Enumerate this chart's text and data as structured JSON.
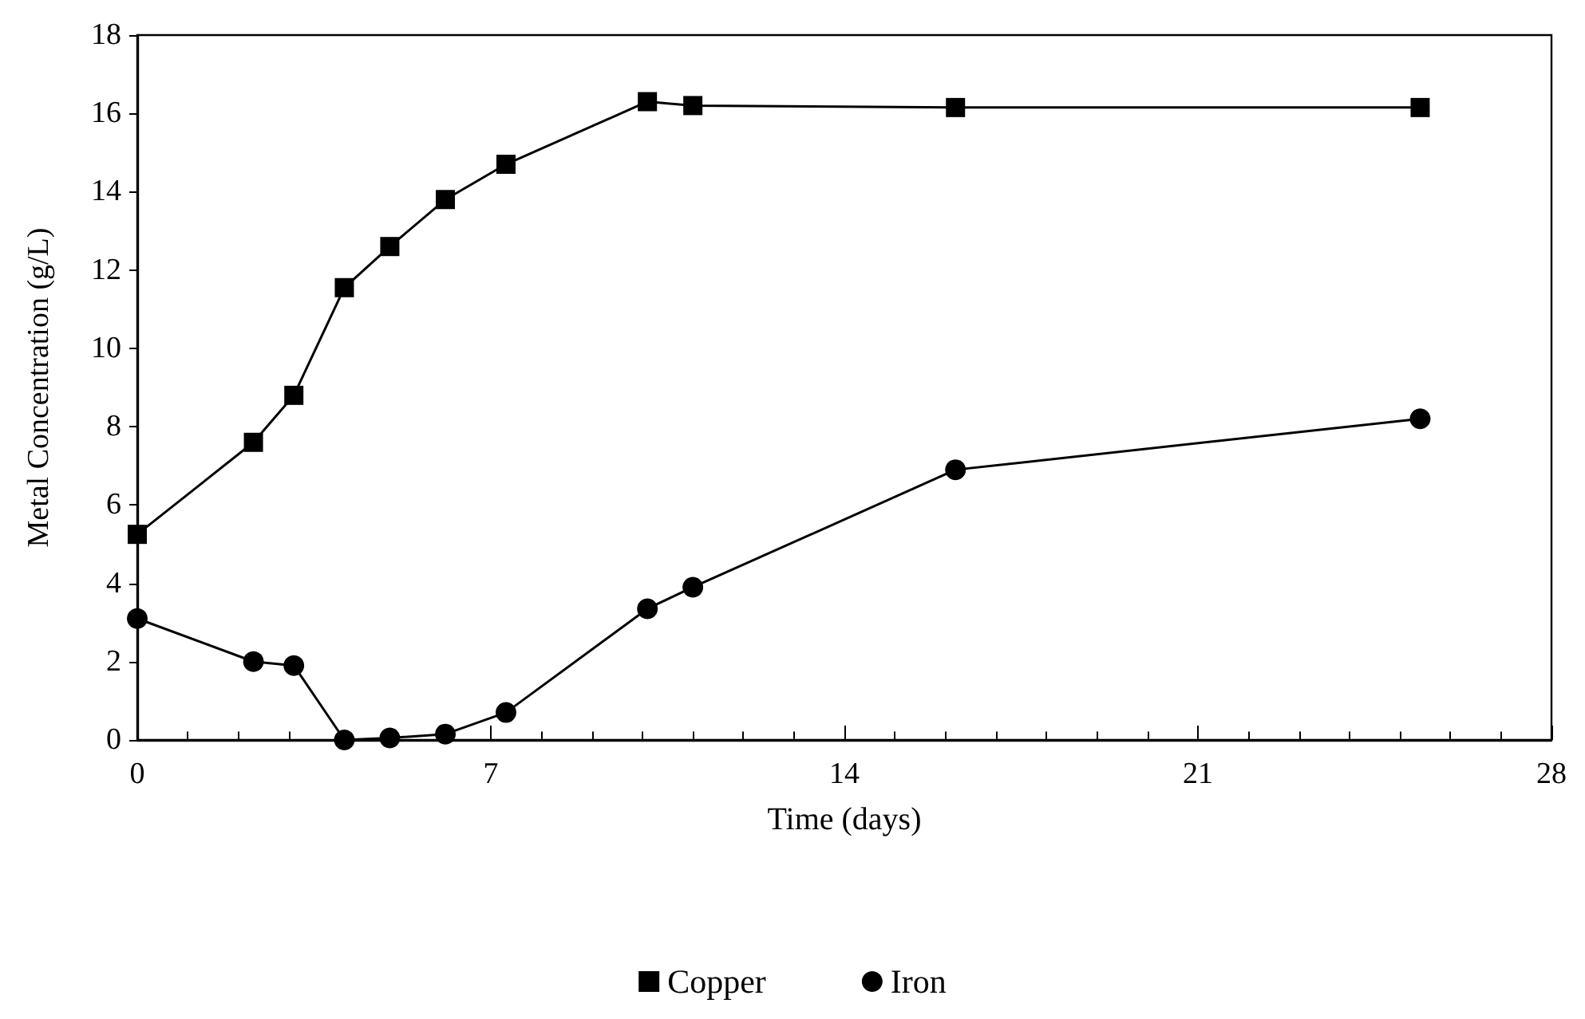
{
  "chart_data": {
    "type": "line",
    "xlabel": "Time (days)",
    "ylabel": "Metal Concentration (g/L)",
    "xlim": [
      0,
      28
    ],
    "xticks": [
      0,
      7,
      14,
      21,
      28
    ],
    "ylim": [
      0,
      18
    ],
    "yticks": [
      0,
      2,
      4,
      6,
      8,
      10,
      12,
      14,
      16,
      18
    ],
    "grid": false,
    "legend": "bottom",
    "series": [
      {
        "name": "Copper",
        "color": "#000000",
        "marker": "square",
        "x": [
          0,
          2.3,
          3.1,
          4.1,
          5,
          6.1,
          7.3,
          10.1,
          11,
          16.2,
          25.4
        ],
        "values": [
          5.25,
          7.6,
          8.8,
          11.55,
          12.6,
          13.8,
          14.7,
          16.3,
          16.2,
          16.15,
          16.15
        ]
      },
      {
        "name": "Iron",
        "color": "#000000",
        "marker": "circle",
        "x": [
          0,
          2.3,
          3.1,
          4.1,
          5,
          6.1,
          7.3,
          10.1,
          11,
          16.2,
          25.4
        ],
        "values": [
          3.1,
          2.0,
          1.9,
          0.0,
          0.05,
          0.15,
          0.7,
          3.35,
          3.9,
          6.9,
          8.2
        ]
      }
    ]
  }
}
